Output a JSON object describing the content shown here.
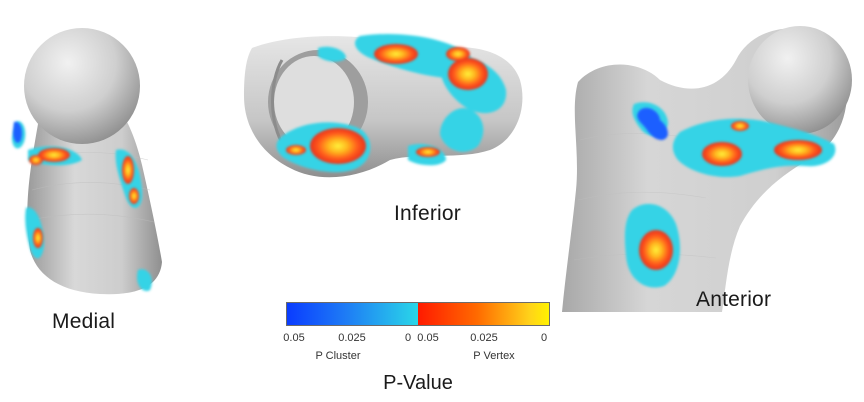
{
  "views": {
    "medial": "Medial",
    "inferior": "Inferior",
    "anterior": "Anterior"
  },
  "colorbar": {
    "cluster_ticks": [
      "0.05",
      "0.025",
      "0"
    ],
    "vertex_ticks": [
      "0.05",
      "0.025",
      "0"
    ],
    "cluster_label": "P Cluster",
    "vertex_label": "P Vertex",
    "title": "P-Value",
    "cluster_colors": [
      "#0a3cff",
      "#1e7cf5",
      "#2ad7e8"
    ],
    "vertex_colors": [
      "#ff1a00",
      "#ff6a00",
      "#ffd21a",
      "#fff200"
    ]
  },
  "colors": {
    "bone": "#c9c9c9",
    "bone_highlight": "#ececec",
    "bone_shadow": "#8e8e8e",
    "cyan": "#34d3e6",
    "blue": "#1f5fff",
    "red": "#e8321a",
    "orange": "#ff9d1f",
    "yellow": "#ffe83a"
  }
}
